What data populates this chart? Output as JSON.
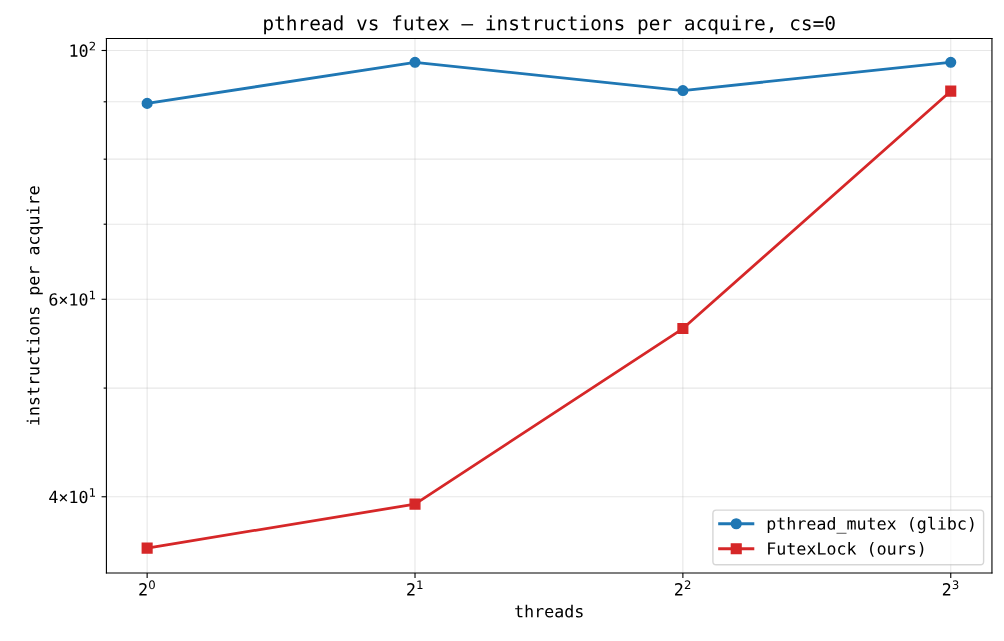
{
  "chart_data": {
    "type": "line",
    "title": "pthread vs futex — instructions per acquire, cs=0",
    "xlabel": "threads",
    "ylabel": "instructions per acquire",
    "x": [
      1,
      2,
      4,
      8
    ],
    "series": [
      {
        "name": "pthread_mutex (glibc)",
        "color": "#1f77b4",
        "marker": "circle",
        "values": [
          89.7,
          97.6,
          92.1,
          97.6
        ]
      },
      {
        "name": "FutexLock (ours)",
        "color": "#d62728",
        "marker": "square",
        "values": [
          36.0,
          39.4,
          56.5,
          92.0
        ]
      }
    ],
    "log": "xy",
    "xlim": [
      0.9,
      8.9
    ],
    "ylim": [
      34.2,
      102.5
    ],
    "xticks": [
      {
        "value": 1,
        "label": "2$^{0}$"
      },
      {
        "value": 2,
        "label": "2$^{1}$"
      },
      {
        "value": 4,
        "label": "2$^{2}$"
      },
      {
        "value": 8,
        "label": "2$^{3}$"
      }
    ],
    "yticks": [
      {
        "value": 40,
        "label": "4×10$^{1}$"
      },
      {
        "value": 50,
        "label": null
      },
      {
        "value": 60,
        "label": "6×10$^{1}$"
      },
      {
        "value": 70,
        "label": null
      },
      {
        "value": 80,
        "label": null
      },
      {
        "value": 90,
        "label": null
      },
      {
        "value": 100,
        "label": "10$^{2}$"
      }
    ],
    "grid": true,
    "legend": "bottom right",
    "line_style": "solid"
  }
}
